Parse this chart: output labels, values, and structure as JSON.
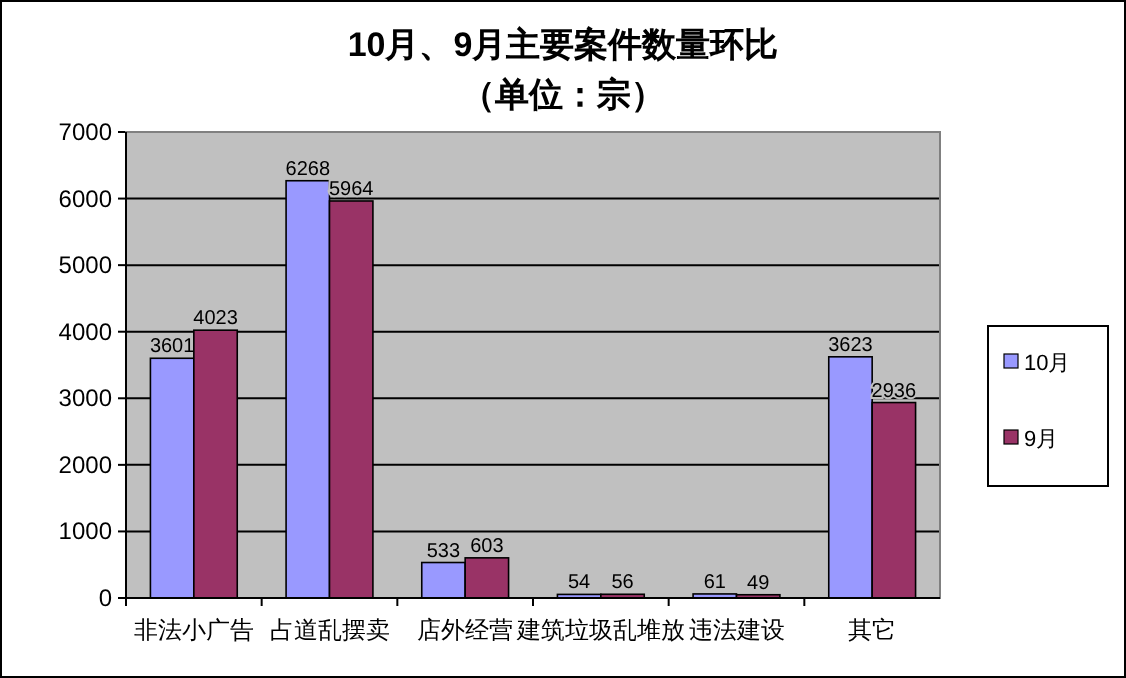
{
  "chart_data": {
    "type": "bar",
    "title": "10月、9月主要案件数量环比",
    "subtitle": "（单位：宗）",
    "categories": [
      "非法小广告",
      "占道乱摆卖",
      "店外经营",
      "建筑垃圾乱堆放",
      "违法建设",
      "其它"
    ],
    "series": [
      {
        "name": "10月",
        "color": "#9999ff",
        "values": [
          3601,
          6268,
          533,
          54,
          61,
          3623
        ]
      },
      {
        "name": "9月",
        "color": "#993366",
        "values": [
          4023,
          5964,
          603,
          56,
          49,
          2936
        ]
      }
    ],
    "ylim": [
      0,
      7000
    ],
    "yticks": [
      0,
      1000,
      2000,
      3000,
      4000,
      5000,
      6000,
      7000
    ],
    "grid": "y",
    "legend": "right",
    "data_labels": true
  }
}
